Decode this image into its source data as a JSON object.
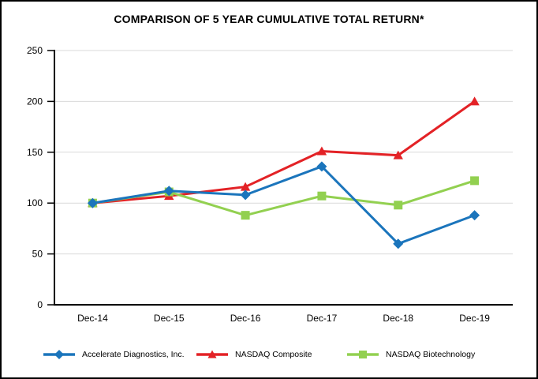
{
  "chart_data": {
    "type": "line",
    "title": "COMPARISON OF 5 YEAR CUMULATIVE TOTAL RETURN*",
    "categories": [
      "Dec-14",
      "Dec-15",
      "Dec-16",
      "Dec-17",
      "Dec-18",
      "Dec-19"
    ],
    "series": [
      {
        "name": "Accelerate Diagnostics, Inc.",
        "marker": "diamond",
        "color": "#1B75BC",
        "values": [
          100,
          112,
          108,
          136,
          60,
          88
        ]
      },
      {
        "name": "NASDAQ Composite",
        "marker": "triangle",
        "color": "#E32226",
        "values": [
          100,
          107,
          116,
          151,
          147,
          200
        ]
      },
      {
        "name": "NASDAQ Biotechnology",
        "marker": "square",
        "color": "#92D050",
        "values": [
          100,
          111,
          88,
          107,
          98,
          122
        ]
      }
    ],
    "ylim": [
      0,
      250
    ],
    "yticks": [
      0,
      50,
      100,
      150,
      200,
      250
    ],
    "grid": true,
    "gridline_color": "#D9D9D9",
    "axis_color": "#000000",
    "legend_position": "bottom",
    "draw_order": [
      1,
      2,
      0
    ]
  }
}
